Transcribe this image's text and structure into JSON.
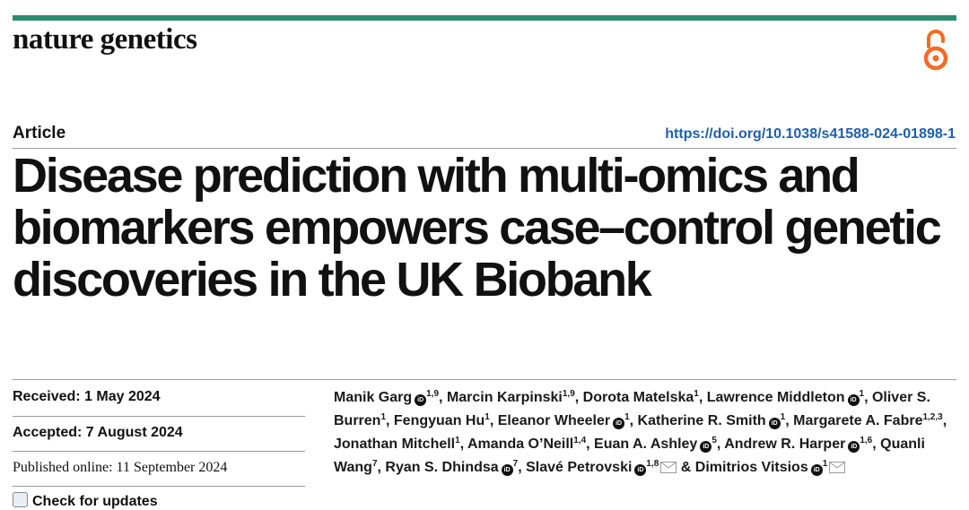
{
  "journal": {
    "name": "nature genetics"
  },
  "icons": {
    "open_access": "open-access-icon",
    "orcid": "orcid-icon",
    "mail": "mail-icon",
    "check": "check-for-updates-icon"
  },
  "colors": {
    "brand_bar": "#2e8b6f",
    "open_access": "#f26c22",
    "doi_link": "#1f5fa8"
  },
  "article": {
    "type": "Article",
    "doi": "https://doi.org/10.1038/s41588-024-01898-1",
    "title": "Disease prediction with multi-omics and biomarkers empowers case–control genetic discoveries in the UK Biobank"
  },
  "meta": {
    "received": "Received: 1 May 2024",
    "accepted": "Accepted: 7 August 2024",
    "published": "Published online: 11 September 2024",
    "check_updates": "Check for updates"
  },
  "authors": [
    {
      "name": "Manik Garg",
      "affil": "1,9",
      "orcid": true
    },
    {
      "name": "Marcin Karpinski",
      "affil": "1,9",
      "orcid": false
    },
    {
      "name": "Dorota Matelska",
      "affil": "1",
      "orcid": false
    },
    {
      "name": "Lawrence Middleton",
      "affil": "1",
      "orcid": true
    },
    {
      "name": "Oliver S. Burren",
      "affil": "1",
      "orcid": false
    },
    {
      "name": "Fengyuan Hu",
      "affil": "1",
      "orcid": false
    },
    {
      "name": "Eleanor Wheeler",
      "affil": "1",
      "orcid": true
    },
    {
      "name": "Katherine R. Smith",
      "affil": "1",
      "orcid": true
    },
    {
      "name": "Margarete A. Fabre",
      "affil": "1,2,3",
      "orcid": false
    },
    {
      "name": "Jonathan Mitchell",
      "affil": "1",
      "orcid": false
    },
    {
      "name": "Amanda O’Neill",
      "affil": "1,4",
      "orcid": false
    },
    {
      "name": "Euan A. Ashley",
      "affil": "5",
      "orcid": true
    },
    {
      "name": "Andrew R. Harper",
      "affil": "1,6",
      "orcid": true
    },
    {
      "name": "Quanli Wang",
      "affil": "7",
      "orcid": false
    },
    {
      "name": "Ryan S. Dhindsa",
      "affil": "7",
      "orcid": true
    },
    {
      "name": "Slavé Petrovski",
      "affil": "1,8",
      "orcid": true,
      "mail": true
    },
    {
      "name": "Dimitrios Vitsios",
      "affil": "1",
      "orcid": true,
      "mail": true
    }
  ]
}
